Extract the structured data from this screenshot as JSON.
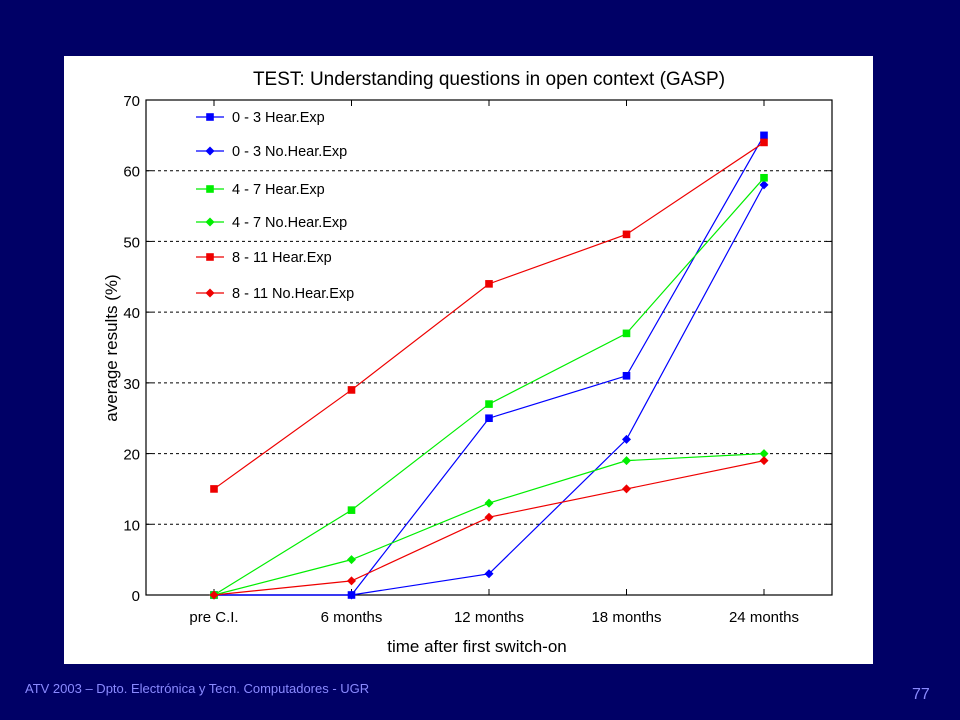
{
  "slide": {
    "footer": "ATV 2003 – Dpto. Electrónica y Tecn. Computadores - UGR",
    "page_number": "77",
    "background": "#000066"
  },
  "chart_data": {
    "type": "line",
    "title": "TEST: Understanding questions in open context (GASP)",
    "xlabel": "time after first switch-on",
    "ylabel": "average results (%)",
    "categories": [
      "pre C.I.",
      "6 months",
      "12 months",
      "18 months",
      "24 months"
    ],
    "ylim": [
      0,
      70
    ],
    "yticks": [
      "0",
      "10",
      "20",
      "30",
      "40",
      "50",
      "60",
      "70"
    ],
    "grid": "horizontal dashed",
    "legend_position": "top-left",
    "series": [
      {
        "name": "0 - 3 Hear.Exp",
        "color": "#0000ff",
        "marker": "square",
        "values": [
          0,
          0,
          25,
          31,
          65
        ]
      },
      {
        "name": "0 - 3 No.Hear.Exp",
        "color": "#0000ff",
        "marker": "diamond",
        "values": [
          0,
          0,
          3,
          22,
          58
        ]
      },
      {
        "name": "4 - 7 Hear.Exp",
        "color": "#00ee00",
        "marker": "square",
        "values": [
          0,
          12,
          27,
          37,
          59
        ]
      },
      {
        "name": "4 - 7 No.Hear.Exp",
        "color": "#00ee00",
        "marker": "diamond",
        "values": [
          0,
          5,
          13,
          19,
          20
        ]
      },
      {
        "name": "8 - 11 Hear.Exp",
        "color": "#ee0000",
        "marker": "square",
        "values": [
          15,
          29,
          44,
          51,
          64
        ]
      },
      {
        "name": "8 - 11 No.Hear.Exp",
        "color": "#ee0000",
        "marker": "diamond",
        "values": [
          0,
          2,
          11,
          15,
          19
        ]
      }
    ]
  }
}
